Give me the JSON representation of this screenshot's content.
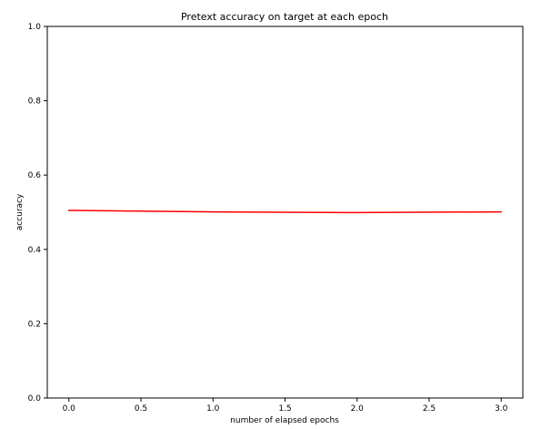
{
  "chart_data": {
    "type": "line",
    "title": "Pretext accuracy on target at each epoch",
    "xlabel": "number of elapsed epochs",
    "ylabel": "accuracy",
    "xlim": [
      -0.15,
      3.15
    ],
    "ylim": [
      0.0,
      1.0
    ],
    "xticks": [
      0.0,
      0.5,
      1.0,
      1.5,
      2.0,
      2.5,
      3.0
    ],
    "xtick_labels": [
      "0.0",
      "0.5",
      "1.0",
      "1.5",
      "2.0",
      "2.5",
      "3.0"
    ],
    "yticks": [
      0.0,
      0.2,
      0.4,
      0.6,
      0.8,
      1.0
    ],
    "ytick_labels": [
      "0.0",
      "0.2",
      "0.4",
      "0.6",
      "0.8",
      "1.0"
    ],
    "grid": false,
    "series": [
      {
        "x": [
          0,
          1,
          2,
          3
        ],
        "y": [
          0.505,
          0.501,
          0.499,
          0.501
        ],
        "color": "#ff0000"
      }
    ]
  }
}
